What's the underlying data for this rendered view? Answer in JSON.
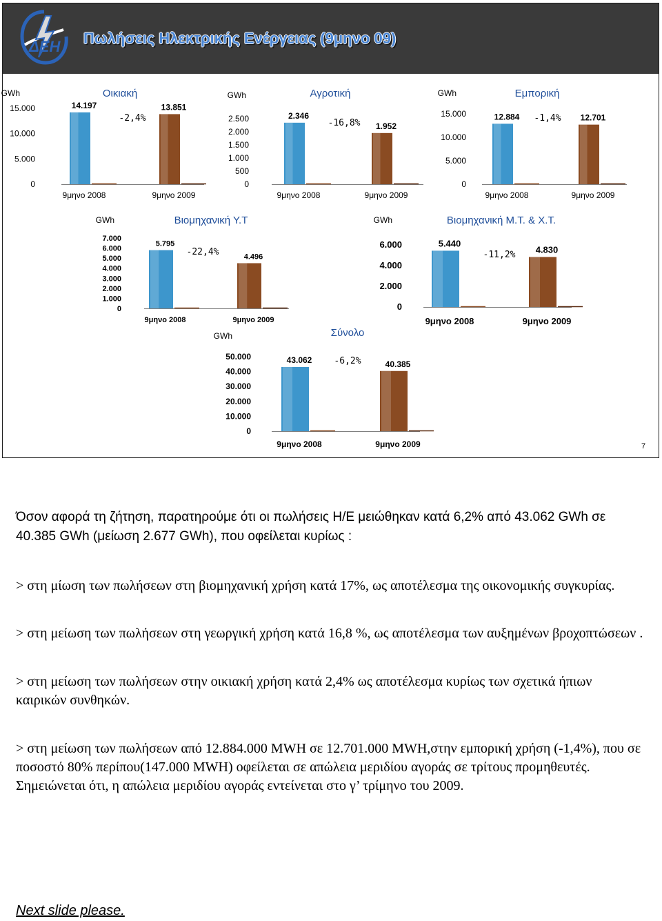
{
  "slide": {
    "title": "Πωλήσεις Ηλεκτρικής Ενέργειας (9μηνο 09)",
    "logo_text": "ΔΕΗ",
    "page_number": "7",
    "colors": {
      "header_bg": "#3a3a3a",
      "title": "#4a86d4",
      "bar_2008": "#3d96cc",
      "bar_2009": "#8a4b22"
    }
  },
  "chart_data": [
    {
      "id": "oikiaki",
      "type": "bar",
      "title": "Οικιακή",
      "unit": "GWh",
      "categories": [
        "9μηνο 2008",
        "9μηνο 2009"
      ],
      "values": [
        14197,
        13851
      ],
      "value_labels": [
        "14.197",
        "13.851"
      ],
      "change_label": "-2,4%",
      "yticks": [
        0,
        5000,
        10000,
        15000
      ],
      "ytick_labels": [
        "0",
        "5.000",
        "10.000",
        "15.000"
      ],
      "ylim": [
        0,
        15000
      ]
    },
    {
      "id": "agrotiki",
      "type": "bar",
      "title": "Αγροτική",
      "unit": "GWh",
      "categories": [
        "9μηνο 2008",
        "9μηνο 2009"
      ],
      "values": [
        2346,
        1952
      ],
      "value_labels": [
        "2.346",
        "1.952"
      ],
      "change_label": "-16,8%",
      "yticks": [
        0,
        500,
        1000,
        1500,
        2000,
        2500
      ],
      "ytick_labels": [
        "0",
        "500",
        "1.000",
        "1.500",
        "2.000",
        "2.500"
      ],
      "ylim": [
        0,
        2500
      ]
    },
    {
      "id": "emporiki",
      "type": "bar",
      "title": "Εμπορική",
      "unit": "GWh",
      "categories": [
        "9μηνο 2008",
        "9μηνο 2009"
      ],
      "values": [
        12884,
        12701
      ],
      "value_labels": [
        "12.884",
        "12.701"
      ],
      "change_label": "-1,4%",
      "yticks": [
        0,
        5000,
        10000,
        15000
      ],
      "ytick_labels": [
        "0",
        "5.000",
        "10.000",
        "15.000"
      ],
      "ylim": [
        0,
        15000
      ]
    },
    {
      "id": "viomixaniki-yt",
      "type": "bar",
      "title": "Βιομηχανική Υ.Τ",
      "unit": "GWh",
      "categories": [
        "9μηνο 2008",
        "9μηνο 2009"
      ],
      "values": [
        5795,
        4496
      ],
      "value_labels": [
        "5.795",
        "4.496"
      ],
      "change_label": "-22,4%",
      "yticks": [
        0,
        1000,
        2000,
        3000,
        4000,
        5000,
        6000,
        7000
      ],
      "ytick_labels": [
        "0",
        "1.000",
        "2.000",
        "3.000",
        "4.000",
        "5.000",
        "6.000",
        "7.000"
      ],
      "ylim": [
        0,
        7000
      ]
    },
    {
      "id": "viomixaniki-mt-xt",
      "type": "bar",
      "title": "Βιομηχανική Μ.Τ. & Χ.Τ.",
      "unit": "GWh",
      "categories": [
        "9μηνο 2008",
        "9μηνο 2009"
      ],
      "values": [
        5440,
        4830
      ],
      "value_labels": [
        "5.440",
        "4.830"
      ],
      "change_label": "-11,2%",
      "yticks": [
        0,
        2000,
        4000,
        6000
      ],
      "ytick_labels": [
        "0",
        "2.000",
        "4.000",
        "6.000"
      ],
      "ylim": [
        0,
        6000
      ]
    },
    {
      "id": "synolo",
      "type": "bar",
      "title": "Σύνολο",
      "unit": "GWh",
      "categories": [
        "9μηνο 2008",
        "9μηνο 2009"
      ],
      "values": [
        43062,
        40385
      ],
      "value_labels": [
        "43.062",
        "40.385"
      ],
      "change_label": "-6,2%",
      "yticks": [
        0,
        10000,
        20000,
        30000,
        40000,
        50000
      ],
      "ytick_labels": [
        "0",
        "10.000",
        "20.000",
        "30.000",
        "40.000",
        "50.000"
      ],
      "ylim": [
        0,
        50000
      ]
    }
  ],
  "notes": {
    "intro": "Όσον αφορά τη ζήτηση, παρατηρούμε ότι οι πωλήσεις Η/Ε μειώθηκαν κατά 6,2% από 43.062 GWh σε 40.385 GWh (μείωση 2.677 GWh), που οφείλεται κυρίως :",
    "bullet_1": "> στη μίωση των πωλήσεων στη βιομηχανική χρήση  κατά  17%, ως αποτέλεσμα της οικονομικής συγκυρίας.",
    "bullet_2": "> στη μείωση των πωλήσεων στη γεωργική χρήση  κατά   16,8 %, ως αποτέλεσμα των αυξημένων βροχοπτώσεων .",
    "bullet_3": "> στη μείωση των πωλήσεων στην οικιακή χρήση κατά  2,4% ως αποτέλεσμα κυρίως των σχετικά ήπιων καιρικών συνθηκών.",
    "bullet_4": "> στη μείωση των πωλήσεων από 12.884.000 MWH σε 12.701.000 MWH,στην εμπορική χρήση (-1,4%), που σε ποσοστό 80% περίπου(147.000 MWH) οφείλεται σε απώλεια μεριδίου αγοράς σε τρίτους προμηθευτές. Σημειώνεται ότι, η απώλεια μεριδίου αγοράς εντείνεται στο γ’ τρίμηνο του 2009.",
    "next_slide": "Next slide please."
  }
}
